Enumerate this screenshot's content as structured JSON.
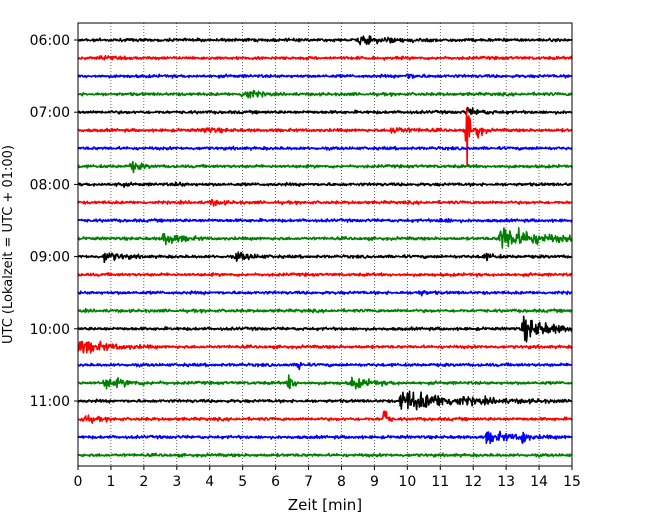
{
  "chart_data": {
    "type": "line",
    "subtype": "helicorder",
    "xlabel": "Zeit  [min]",
    "ylabel": "UTC (Lokalzeit = UTC + 01:00)",
    "xlim": [
      0,
      15
    ],
    "x_ticks": [
      "0",
      "1",
      "2",
      "3",
      "4",
      "5",
      "6",
      "7",
      "8",
      "9",
      "10",
      "11",
      "12",
      "13",
      "14",
      "15"
    ],
    "y_ticks": [
      {
        "label": "06:00",
        "row": 0
      },
      {
        "label": "07:00",
        "row": 4
      },
      {
        "label": "08:00",
        "row": 8
      },
      {
        "label": "09:00",
        "row": 12
      },
      {
        "label": "10:00",
        "row": 16
      },
      {
        "label": "11:00",
        "row": 20
      }
    ],
    "grid": "vertical dotted at each minute",
    "trace_colors": [
      "#000000",
      "#ff0000",
      "#0000ff",
      "#008000"
    ],
    "traces": [
      {
        "start": "06:00",
        "color": "#000000",
        "events": [
          {
            "t": 8.5,
            "dur": 2.0,
            "amp": 0.4
          }
        ]
      },
      {
        "start": "06:15",
        "color": "#ff0000",
        "events": [
          {
            "t": 0.7,
            "dur": 0.3,
            "amp": 0.4
          }
        ]
      },
      {
        "start": "06:30",
        "color": "#0000ff",
        "events": [
          {
            "t": 10.0,
            "dur": 0.4,
            "amp": 0.35
          }
        ]
      },
      {
        "start": "06:45",
        "color": "#008000",
        "events": [
          {
            "t": 5.0,
            "dur": 0.6,
            "amp": 0.8
          }
        ]
      },
      {
        "start": "07:00",
        "color": "#000000",
        "events": [
          {
            "t": 11.8,
            "dur": 0.8,
            "amp": 0.4
          }
        ]
      },
      {
        "start": "07:15",
        "color": "#ff0000",
        "events": [
          {
            "t": 11.8,
            "dur": 0.15,
            "amp": 4.0
          },
          {
            "t": 12.1,
            "dur": 0.3,
            "amp": 1.0
          },
          {
            "t": 3.8,
            "dur": 0.8,
            "amp": 0.3
          },
          {
            "t": 9.5,
            "dur": 1.0,
            "amp": 0.35
          }
        ]
      },
      {
        "start": "07:30",
        "color": "#0000ff",
        "events": []
      },
      {
        "start": "07:45",
        "color": "#008000",
        "events": [
          {
            "t": 1.6,
            "dur": 0.5,
            "amp": 0.6
          }
        ]
      },
      {
        "start": "08:00",
        "color": "#000000",
        "events": [
          {
            "t": 1.2,
            "dur": 0.3,
            "amp": 0.3
          },
          {
            "t": 3.0,
            "dur": 0.3,
            "amp": 0.25
          }
        ]
      },
      {
        "start": "08:15",
        "color": "#ff0000",
        "events": [
          {
            "t": 4.0,
            "dur": 0.6,
            "amp": 0.3
          }
        ]
      },
      {
        "start": "08:30",
        "color": "#0000ff",
        "events": [
          {
            "t": 11.0,
            "dur": 0.4,
            "amp": 0.3
          }
        ]
      },
      {
        "start": "08:45",
        "color": "#008000",
        "events": [
          {
            "t": 2.6,
            "dur": 0.8,
            "amp": 0.8
          },
          {
            "t": 12.8,
            "dur": 2.0,
            "amp": 1.5
          }
        ]
      },
      {
        "start": "09:00",
        "color": "#000000",
        "events": [
          {
            "t": 0.8,
            "dur": 0.8,
            "amp": 0.6
          },
          {
            "t": 4.8,
            "dur": 0.8,
            "amp": 0.5
          },
          {
            "t": 12.3,
            "dur": 0.5,
            "amp": 0.4
          }
        ]
      },
      {
        "start": "09:15",
        "color": "#ff0000",
        "events": []
      },
      {
        "start": "09:30",
        "color": "#0000ff",
        "events": [
          {
            "t": 10.3,
            "dur": 0.4,
            "amp": 0.35
          }
        ]
      },
      {
        "start": "09:45",
        "color": "#008000",
        "events": []
      },
      {
        "start": "10:00",
        "color": "#000000",
        "events": [
          {
            "t": 13.5,
            "dur": 1.5,
            "amp": 1.3
          }
        ]
      },
      {
        "start": "10:15",
        "color": "#ff0000",
        "events": [
          {
            "t": 0.0,
            "dur": 1.5,
            "amp": 0.8
          }
        ]
      },
      {
        "start": "10:30",
        "color": "#0000ff",
        "events": [
          {
            "t": 6.7,
            "dur": 0.15,
            "amp": 0.8
          }
        ]
      },
      {
        "start": "10:45",
        "color": "#008000",
        "events": [
          {
            "t": 0.8,
            "dur": 1.2,
            "amp": 0.6
          },
          {
            "t": 6.4,
            "dur": 0.2,
            "amp": 1.5
          },
          {
            "t": 8.3,
            "dur": 1.0,
            "amp": 0.6
          }
        ]
      },
      {
        "start": "11:00",
        "color": "#000000",
        "events": [
          {
            "t": 9.8,
            "dur": 3.0,
            "amp": 1.2
          }
        ]
      },
      {
        "start": "11:15",
        "color": "#ff0000",
        "events": [
          {
            "t": 0.1,
            "dur": 0.8,
            "amp": 0.4
          },
          {
            "t": 9.3,
            "dur": 0.15,
            "amp": 2.0
          }
        ]
      },
      {
        "start": "11:30",
        "color": "#0000ff",
        "events": [
          {
            "t": 12.4,
            "dur": 1.5,
            "amp": 0.6
          },
          {
            "t": 13.5,
            "dur": 0.15,
            "amp": 1.2
          }
        ]
      },
      {
        "start": "11:45",
        "color": "#008000",
        "events": []
      }
    ]
  }
}
